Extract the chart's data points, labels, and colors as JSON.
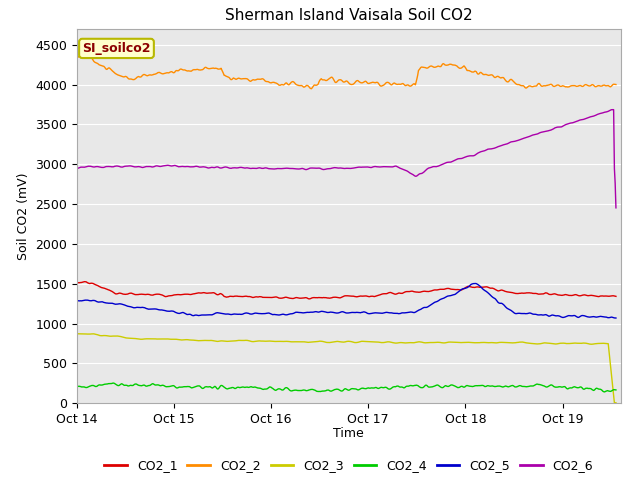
{
  "title": "Sherman Island Vaisala Soil CO2",
  "xlabel": "Time",
  "ylabel": "Soil CO2 (mV)",
  "ylim": [
    0,
    4700
  ],
  "yticks": [
    0,
    500,
    1000,
    1500,
    2000,
    2500,
    3000,
    3500,
    4000,
    4500
  ],
  "bg_color": "#e8e8e8",
  "fig_color": "#ffffff",
  "annotation_text": "SI_soilco2",
  "annotation_color": "#8b0000",
  "annotation_bg": "#ffffcc",
  "annotation_border": "#b8b800",
  "series_colors": {
    "CO2_1": "#dd0000",
    "CO2_2": "#ff8c00",
    "CO2_3": "#cccc00",
    "CO2_4": "#00cc00",
    "CO2_5": "#0000cc",
    "CO2_6": "#aa00aa"
  },
  "series_lw": 1.0,
  "xticklabels": [
    "Oct 14",
    "Oct 15",
    "Oct 16",
    "Oct 17",
    "Oct 18",
    "Oct 19"
  ],
  "xtick_pos": [
    0,
    1,
    2,
    3,
    4,
    5
  ],
  "xlim": [
    0,
    5.6
  ],
  "num_points": 700,
  "grid_color": "#ffffff",
  "grid_lw": 0.8,
  "spine_color": "#aaaaaa"
}
